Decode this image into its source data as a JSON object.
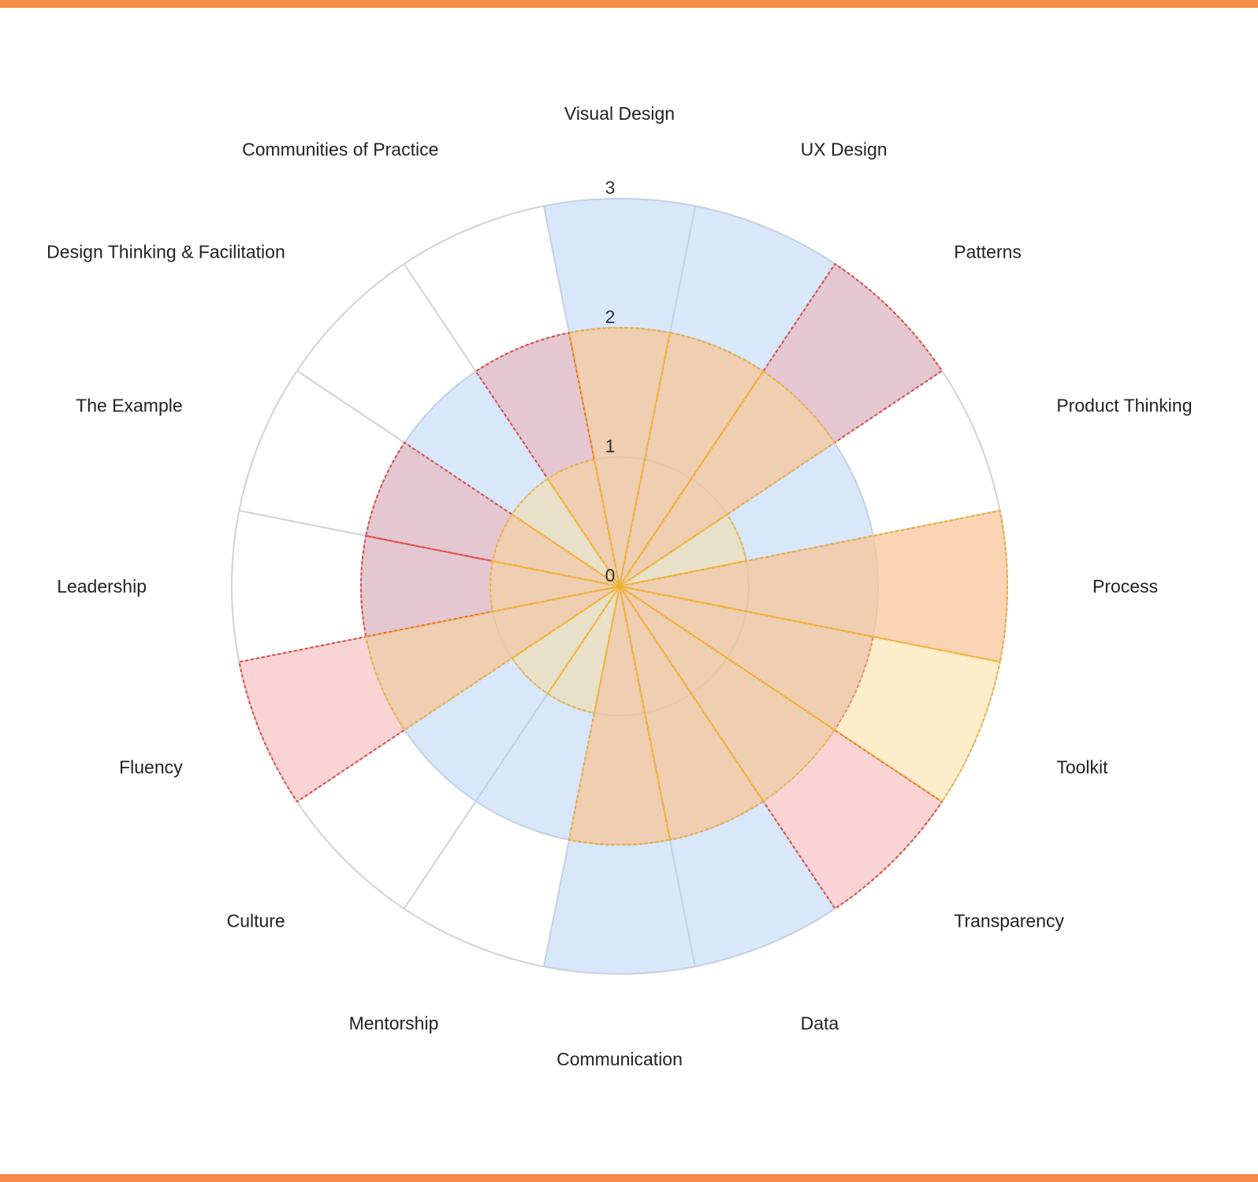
{
  "colors": {
    "frame_bar": "#f58a4b",
    "grid": "#d2d2d2"
  },
  "chart_data": {
    "type": "radar",
    "subtype": "polar-area petals (curved dashed outlines)",
    "axes": [
      "Visual Design",
      "UX Design",
      "Patterns",
      "Product Thinking",
      "Process",
      "Toolkit",
      "Transparency",
      "Data",
      "Communication",
      "Mentorship",
      "Culture",
      "Fluency",
      "Leadership",
      "The Example",
      "Design Thinking & Facilitation",
      "Communities of Practice"
    ],
    "tick_labels": [
      "0",
      "1",
      "2",
      "3"
    ],
    "rlim": [
      0,
      3
    ],
    "grid": true,
    "legend": "none",
    "series": [
      {
        "color": "#a9c9f5",
        "stroke": "#c3d4ea",
        "values": [
          3,
          3,
          3,
          2,
          2,
          2,
          2,
          3,
          3,
          2,
          2,
          2,
          2,
          2,
          2,
          2
        ]
      },
      {
        "color": "#f5a0a0",
        "stroke": "#e2463f",
        "values": [
          2,
          2,
          3,
          0,
          3,
          2,
          3,
          2,
          2,
          0,
          0,
          3,
          2,
          2,
          0,
          2
        ]
      },
      {
        "color": "#fcd88c",
        "stroke": "#efb232",
        "values": [
          2,
          2,
          2,
          1,
          3,
          3,
          2,
          2,
          2,
          1,
          1,
          2,
          1,
          1,
          1,
          1
        ]
      }
    ]
  }
}
